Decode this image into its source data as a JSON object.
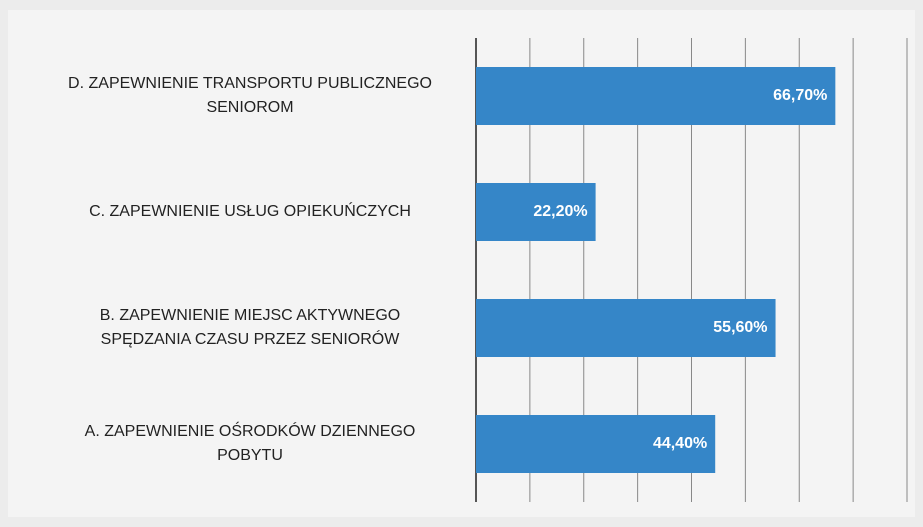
{
  "chart_data": {
    "type": "barh",
    "categories": [
      "D. ZAPEWNIENIE TRANSPORTU PUBLICZNEGO\nSENIOROM",
      "C. ZAPEWNIENIE USŁUG OPIEKUŃCZYCH",
      "B. ZAPEWNIENIE MIEJSC AKTYWNEGO\nSPĘDZANIA CZASU PRZEZ SENIORÓW",
      "A. ZAPEWNIENIE OŚRODKÓW DZIENNEGO\nPOBYTU"
    ],
    "values": [
      66.7,
      22.2,
      55.6,
      44.4
    ],
    "value_labels": [
      "66,70%",
      "22,20%",
      "55,60%",
      "44,40%"
    ],
    "color": "#3586c8",
    "xlim": [
      0,
      80
    ],
    "xticks": [
      0,
      10,
      20,
      30,
      40,
      50,
      60,
      70,
      80
    ],
    "grid": true
  }
}
